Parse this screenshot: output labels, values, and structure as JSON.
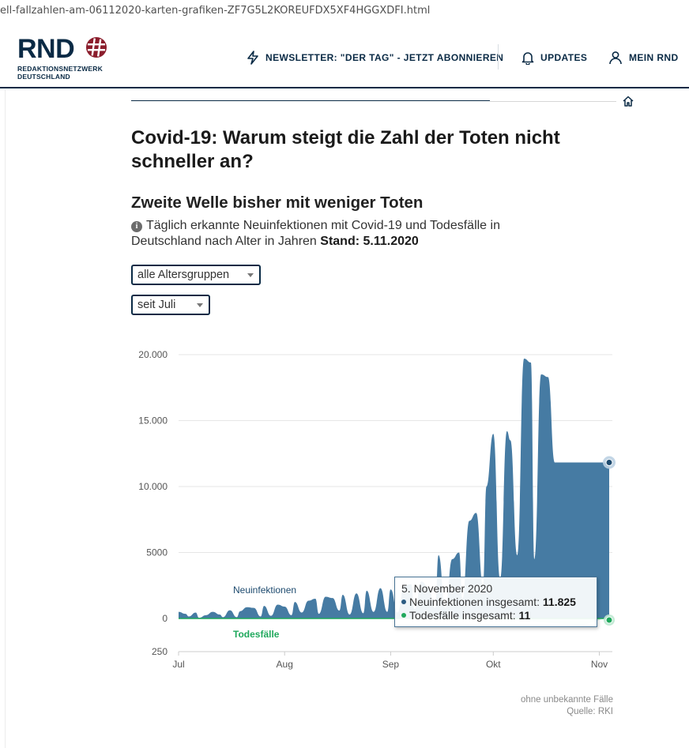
{
  "browser": {
    "url_fragment": "ell-fallzahlen-am-06112020-karten-grafiken-ZF7G5L2KOREUFDX5XF4HGGXDFI.html"
  },
  "header": {
    "logo_text": "RND",
    "logo_subline_1": "REDAKTIONSNETZWERK",
    "logo_subline_2": "DEUTSCHLAND",
    "newsletter_label": "NEWSLETTER: \"DER TAG\" - JETZT ABONNIEREN",
    "updates_label": "UPDATES",
    "mein_label": "MEIN RND",
    "brand_color": "#0a2a45",
    "accent_color": "#8b1d2c"
  },
  "article": {
    "title": "Covid-19: Warum steigt die Zahl der Toten nicht schneller an?"
  },
  "chart_module": {
    "heading": "Zweite Welle bisher mit weniger Toten",
    "description": "Täglich erkannte Neuinfektionen mit Covid-19 und Todesfälle in Deutschland nach Alter in Jahren",
    "stand_label": "Stand: 5.11.2020",
    "age_select_value": "alle Altersgruppen",
    "period_select_value": "seit Juli",
    "tooltip": {
      "date": "5. November 2020",
      "infections_label": "Neuinfektionen insgesamt:",
      "infections_value": "11.825",
      "deaths_label": "Todesfälle insgesamt:",
      "deaths_value": "11"
    },
    "source_line_1": "ohne unbekannte Fälle",
    "source_line_2": "Quelle: RKI"
  },
  "chart_data": {
    "type": "area",
    "title": "Zweite Welle bisher mit weniger Toten",
    "ylim": [
      -250,
      20000
    ],
    "yticks": [
      {
        "value": 20000,
        "label": "20.000"
      },
      {
        "value": 15000,
        "label": "15.000"
      },
      {
        "value": 10000,
        "label": "10.000"
      },
      {
        "value": 5000,
        "label": "5000"
      },
      {
        "value": 0,
        "label": "0"
      },
      {
        "value": -250,
        "label": "250"
      }
    ],
    "xticks": [
      {
        "day": 0,
        "label": "Jul"
      },
      {
        "day": 31,
        "label": "Aug"
      },
      {
        "day": 62,
        "label": "Sep"
      },
      {
        "day": 92,
        "label": "Okt"
      },
      {
        "day": 123,
        "label": "Nov"
      }
    ],
    "grid": true,
    "series": [
      {
        "name": "Neuinfektionen",
        "color": "#467ba3",
        "x_days": [
          0,
          2,
          3,
          5,
          6,
          8,
          10,
          12,
          13,
          15,
          17,
          18,
          20,
          22,
          24,
          25,
          27,
          29,
          31,
          33,
          34,
          36,
          38,
          40,
          41,
          43,
          45,
          47,
          48,
          50,
          52,
          54,
          55,
          57,
          59,
          61,
          62,
          64,
          66,
          68,
          69,
          71,
          73,
          75,
          76,
          78,
          80,
          82,
          83,
          85,
          87,
          89,
          90,
          92,
          94,
          96,
          97,
          99,
          101,
          103,
          104,
          106,
          108,
          110,
          111,
          113,
          115,
          117,
          118,
          120,
          122,
          124,
          125,
          127
        ],
        "values": [
          500,
          350,
          150,
          450,
          50,
          250,
          500,
          300,
          100,
          620,
          100,
          550,
          850,
          800,
          150,
          950,
          200,
          1050,
          900,
          250,
          1250,
          450,
          1350,
          1500,
          350,
          1650,
          1550,
          600,
          1800,
          300,
          1900,
          400,
          2100,
          500,
          2300,
          500,
          2200,
          450,
          2500,
          2600,
          700,
          2800,
          2400,
          800,
          4800,
          800,
          4500,
          5000,
          1500,
          7400,
          8000,
          2500,
          10000,
          14000,
          3000,
          14200,
          13500,
          4800,
          19700,
          19400,
          4500,
          18500,
          18300,
          11825,
          11825,
          11825,
          11825,
          11825,
          11825,
          11825,
          11825,
          11825,
          11825,
          11825
        ]
      },
      {
        "name": "Todesfälle",
        "color": "#1fa85c",
        "x_days": [
          0,
          15,
          30,
          45,
          60,
          75,
          90,
          100,
          110,
          118,
          124,
          127
        ],
        "values": [
          5,
          4,
          3,
          4,
          5,
          8,
          15,
          40,
          90,
          130,
          11,
          11
        ]
      }
    ],
    "highlight": {
      "day": 127,
      "infections": 11825,
      "deaths": 11
    }
  }
}
